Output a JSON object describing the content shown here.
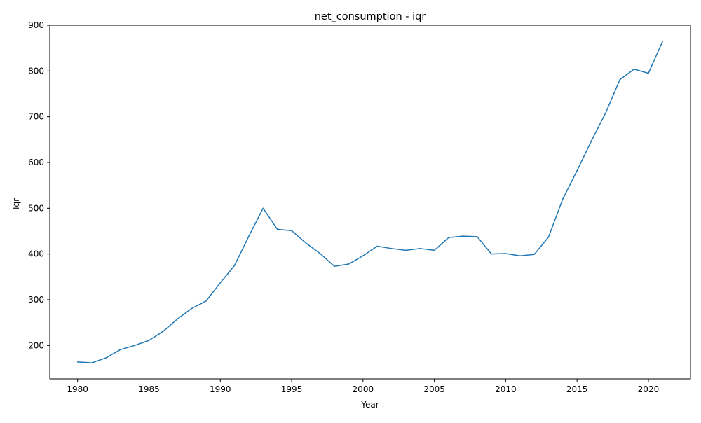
{
  "colors": {
    "line": "#1f77b4",
    "axes": "#000000",
    "background": "#ffffff"
  },
  "chart_data": {
    "type": "line",
    "title": "net_consumption - iqr",
    "xlabel": "Year",
    "ylabel": "Iqr",
    "xlim": [
      1978.05,
      2022.95
    ],
    "ylim": [
      127,
      900
    ],
    "xticks": [
      1980,
      1985,
      1990,
      1995,
      2000,
      2005,
      2010,
      2015,
      2020
    ],
    "xtick_labels": [
      "1980",
      "1985",
      "1990",
      "1995",
      "2000",
      "2005",
      "2010",
      "2015",
      "2020"
    ],
    "yticks": [
      200,
      300,
      400,
      500,
      600,
      700,
      800,
      900
    ],
    "ytick_labels": [
      "200",
      "300",
      "400",
      "500",
      "600",
      "700",
      "800",
      "900"
    ],
    "grid": false,
    "legend": "none",
    "series": [
      {
        "x": [
          1980,
          1981,
          1982,
          1983,
          1984,
          1985,
          1986,
          1987,
          1988,
          1989,
          1990,
          1991,
          1992,
          1993,
          1994,
          1995,
          1996,
          1997,
          1998,
          1999,
          2000,
          2001,
          2002,
          2003,
          2004,
          2005,
          2006,
          2007,
          2008,
          2009,
          2010,
          2011,
          2012,
          2013,
          2014,
          2015,
          2016,
          2017,
          2018,
          2019,
          2020,
          2021
        ],
        "values": [
          164,
          162,
          173,
          191,
          200,
          211,
          231,
          258,
          281,
          297,
          337,
          375,
          439,
          500,
          454,
          451,
          424,
          401,
          373,
          378,
          396,
          417,
          412,
          408,
          412,
          408,
          436,
          439,
          438,
          400,
          401,
          396,
          399,
          437,
          520,
          582,
          647,
          708,
          781,
          804,
          795,
          865
        ]
      }
    ]
  }
}
